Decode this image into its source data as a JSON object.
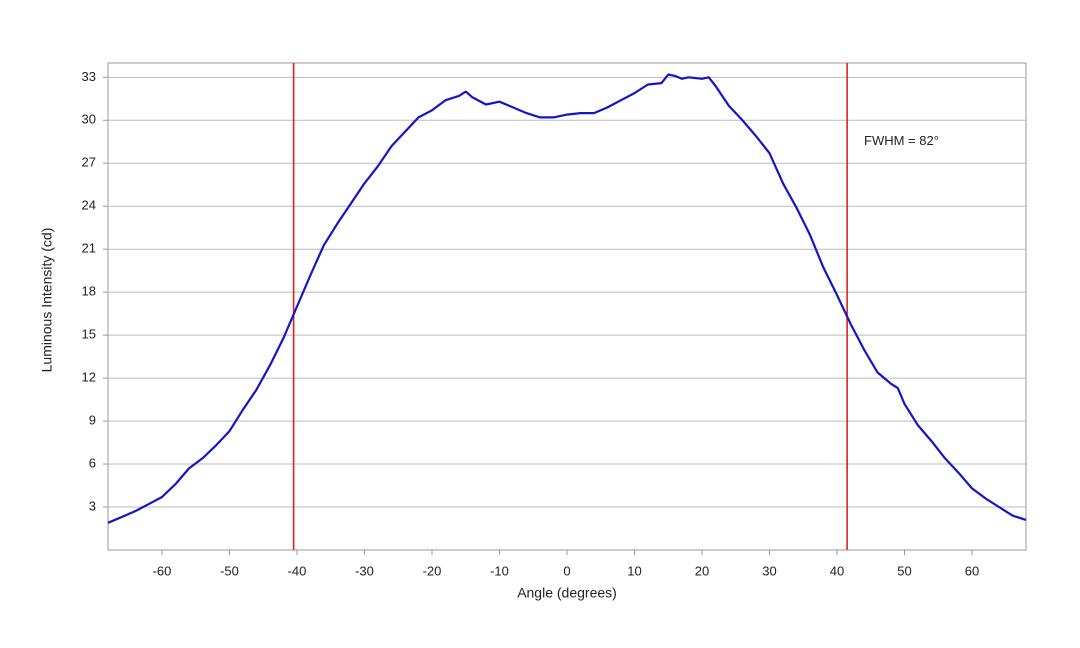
{
  "chart_data": {
    "type": "line",
    "x_label": "Angle (degrees)",
    "y_label": "Luminous Intensity (cd)",
    "x": [
      -68,
      -66,
      -64,
      -62,
      -60,
      -58,
      -56,
      -54,
      -52,
      -50,
      -48,
      -46,
      -44,
      -42,
      -40,
      -38,
      -36,
      -34,
      -32,
      -30,
      -28,
      -26,
      -24,
      -22,
      -20,
      -18,
      -16,
      -15,
      -14,
      -12,
      -10,
      -8,
      -6,
      -4,
      -2,
      0,
      2,
      4,
      6,
      8,
      10,
      12,
      14,
      15,
      16,
      17,
      18,
      20,
      21,
      22,
      24,
      26,
      28,
      30,
      32,
      34,
      36,
      38,
      40,
      42,
      44,
      46,
      48,
      49,
      50,
      52,
      54,
      56,
      58,
      60,
      62,
      64,
      66,
      68
    ],
    "series": [
      {
        "name": "Luminous Intensity",
        "color": "#1414c8",
        "values": [
          1.9,
          2.3,
          2.7,
          3.2,
          3.7,
          4.6,
          5.7,
          6.4,
          7.3,
          8.3,
          9.8,
          11.2,
          12.9,
          14.8,
          17.0,
          19.2,
          21.3,
          22.8,
          24.2,
          25.6,
          26.8,
          28.2,
          29.2,
          30.2,
          30.7,
          31.4,
          31.7,
          32.0,
          31.6,
          31.1,
          31.3,
          30.9,
          30.5,
          30.2,
          30.2,
          30.4,
          30.5,
          30.5,
          30.9,
          31.4,
          31.9,
          32.5,
          32.6,
          33.2,
          33.1,
          32.9,
          33.0,
          32.9,
          33.0,
          32.4,
          31.0,
          30.0,
          28.9,
          27.7,
          25.6,
          23.9,
          22.0,
          19.7,
          17.8,
          15.8,
          14.0,
          12.4,
          11.6,
          11.3,
          10.2,
          8.7,
          7.6,
          6.4,
          5.4,
          4.3,
          3.6,
          3.0,
          2.4,
          2.1
        ]
      }
    ],
    "vlines": [
      {
        "x": -40.5,
        "color": "#e02020"
      },
      {
        "x": 41.5,
        "color": "#e02020"
      }
    ],
    "annotation": {
      "text": "FWHM = 82°",
      "x": 44,
      "y": 28.5
    },
    "xlim": [
      -68,
      68
    ],
    "ylim": [
      0,
      34
    ],
    "xticks": [
      -60,
      -50,
      -40,
      -30,
      -20,
      -10,
      0,
      10,
      20,
      30,
      40,
      50,
      60
    ],
    "yticks": [
      3,
      6,
      9,
      12,
      15,
      18,
      21,
      24,
      27,
      30,
      33
    ],
    "grid": true
  }
}
